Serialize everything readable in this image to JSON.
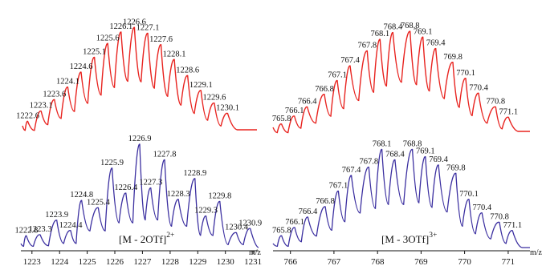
{
  "colors": {
    "simulated": "#e8231f",
    "observed": "#3b2fa0",
    "axis": "#111111"
  },
  "chart_data": [
    {
      "type": "line",
      "name": "simulated-2plus",
      "x": [
        1222.6,
        1223.1,
        1223.6,
        1224.1,
        1224.6,
        1225.1,
        1225.6,
        1226.1,
        1226.6,
        1227.1,
        1227.6,
        1228.1,
        1228.6,
        1229.1,
        1229.6,
        1230.1
      ],
      "peak_labels": [
        "1222.6",
        "1223.1",
        "1223.6",
        "1224.1",
        "1224.6",
        "1225.1",
        "1225.6",
        "1226.1",
        "1226.6",
        "1227.1",
        "1227.6",
        "1228.1",
        "1228.6",
        "1229.1",
        "1229.6",
        "1230.1"
      ],
      "y": [
        8,
        17,
        27,
        38,
        51,
        64,
        76,
        86,
        90,
        85,
        75,
        62,
        48,
        35,
        24,
        15
      ],
      "xlim": [
        1222.4,
        1231.2
      ]
    },
    {
      "type": "line",
      "name": "simulated-3plus",
      "x": [
        765.8,
        766.1,
        766.4,
        766.8,
        767.1,
        767.4,
        767.8,
        768.1,
        768.4,
        768.8,
        769.1,
        769.4,
        769.8,
        770.1,
        770.4,
        770.8,
        771.1
      ],
      "peak_labels": [
        "765.8",
        "766.1",
        "766.4",
        "766.8",
        "767.1",
        "767.4",
        "767.8",
        "768.1",
        "768.4",
        "768.8",
        "769.1",
        "769.4",
        "769.8",
        "770.1",
        "770.4",
        "770.8",
        "771.1"
      ],
      "y": [
        7,
        14,
        22,
        33,
        45,
        58,
        71,
        81,
        87,
        88,
        83,
        73,
        61,
        47,
        34,
        22,
        13
      ],
      "xlim": [
        765.6,
        771.6
      ]
    },
    {
      "type": "line",
      "name": "observed-2plus",
      "x": [
        1222.8,
        1223.3,
        1223.9,
        1224.4,
        1224.8,
        1225.4,
        1225.9,
        1226.4,
        1226.9,
        1227.3,
        1227.8,
        1228.3,
        1228.9,
        1229.3,
        1229.8,
        1230.4,
        1230.9
      ],
      "peak_labels": [
        "1222.8",
        "1223.3",
        "1223.9",
        "1224.4",
        "1224.8",
        "1225.4",
        "1225.9",
        "1226.4",
        "1226.9",
        "1227.3",
        "1227.8",
        "1228.3",
        "1228.9",
        "1229.3",
        "1229.8",
        "1230.4",
        "1230.9"
      ],
      "y": [
        12,
        13,
        27,
        17,
        46,
        39,
        77,
        53,
        100,
        58,
        85,
        47,
        67,
        31,
        45,
        15,
        19
      ],
      "xlim": [
        1222.6,
        1231.2
      ],
      "xticks": [
        1223,
        1224,
        1225,
        1226,
        1227,
        1228,
        1229,
        1230,
        1231
      ],
      "ion_label": "[M - 2OTf]",
      "ion_charge": "2+",
      "xlabel": "m/z"
    },
    {
      "type": "line",
      "name": "observed-3plus",
      "x": [
        765.8,
        766.1,
        766.4,
        766.8,
        767.1,
        767.4,
        767.8,
        768.1,
        768.4,
        768.8,
        769.1,
        769.4,
        769.8,
        770.1,
        770.4,
        770.8,
        771.1
      ],
      "peak_labels": [
        "765.8",
        "766.1",
        "766.4",
        "766.8",
        "767.1",
        "767.4",
        "767.8",
        "768.1",
        "768.4",
        "768.8",
        "769.1",
        "769.4",
        "769.8",
        "770.1",
        "770.4",
        "770.8",
        "771.1"
      ],
      "y": [
        12,
        20,
        30,
        40,
        55,
        70,
        78,
        95,
        85,
        95,
        88,
        80,
        72,
        47,
        34,
        25,
        17
      ],
      "xlim": [
        765.6,
        771.5
      ],
      "xticks": [
        766,
        767,
        768,
        769,
        770,
        771
      ],
      "ion_label": "[M - 3OTf]",
      "ion_charge": "3+",
      "xlabel": "m/z"
    }
  ]
}
